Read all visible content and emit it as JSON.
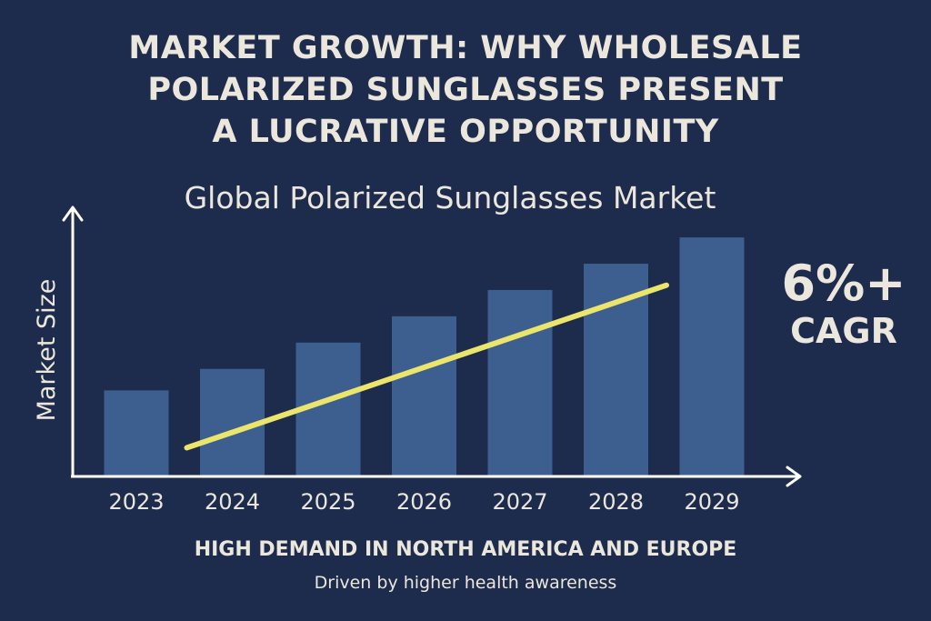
{
  "headline": {
    "lines": [
      "MARKET GROWTH: WHY WHOLESALE",
      "POLARIZED SUNGLASSES PRESENT",
      "A LUCRATIVE OPPORTUNITY"
    ]
  },
  "chart_data": {
    "type": "bar",
    "title": "Global Polarized Sunglasses Market",
    "ylabel": "Market Size",
    "xlabel": "",
    "categories": [
      "2023",
      "2024",
      "2025",
      "2026",
      "2027",
      "2028",
      "2029"
    ],
    "values": [
      36,
      45,
      56,
      67,
      78,
      89,
      100
    ],
    "ylim": [
      0,
      105
    ],
    "trend_line": {
      "from": [
        "2024",
        12
      ],
      "to": [
        "2029",
        80
      ]
    },
    "grid": false,
    "colors": {
      "bars": "#3d5f8f",
      "trend_line": "#ece56c",
      "axes": "#ffffff",
      "background": "#1d2b4c"
    }
  },
  "cagr": {
    "value": "6%+",
    "label": "CAGR"
  },
  "footer": {
    "title": "HIGH DEMAND IN NORTH AMERICA AND EUROPE",
    "subtitle": "Driven by higher health awareness"
  }
}
